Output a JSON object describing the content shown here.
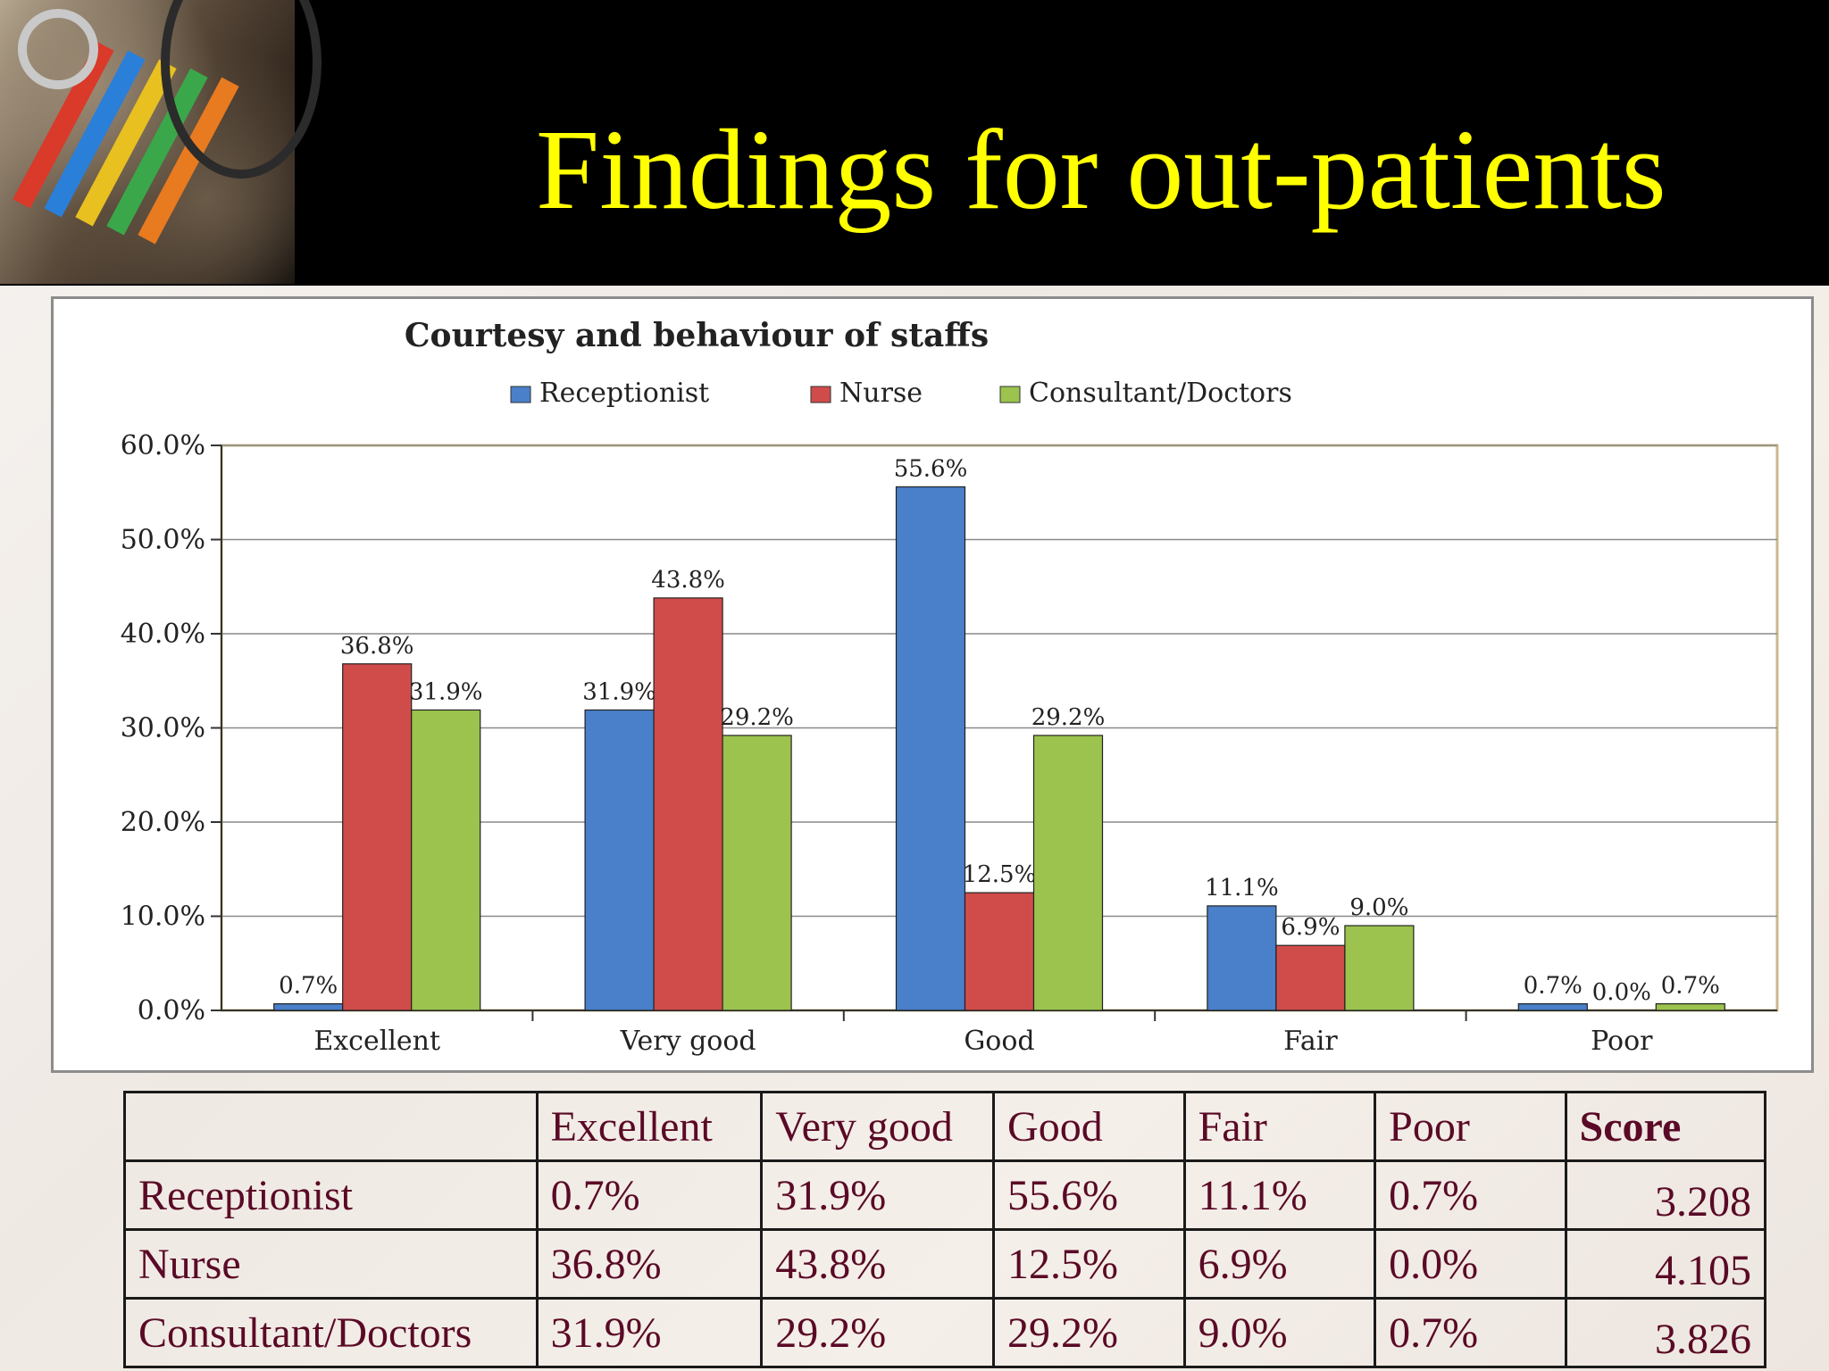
{
  "slide": {
    "title": "Findings for out-patients"
  },
  "chart_data": {
    "type": "bar",
    "title": "Courtesy and behaviour of staffs",
    "categories": [
      "Excellent",
      "Very good",
      "Good",
      "Fair",
      "Poor"
    ],
    "series": [
      {
        "name": "Receptionist",
        "color": "#4a7fc9",
        "values": [
          0.7,
          31.9,
          55.6,
          11.1,
          0.7
        ],
        "labels": [
          "0.7%",
          "31.9%",
          "55.6%",
          "11.1%",
          "0.7%"
        ]
      },
      {
        "name": "Nurse",
        "color": "#d04c4a",
        "values": [
          36.8,
          43.8,
          12.5,
          6.9,
          0.0
        ],
        "labels": [
          "36.8%",
          "43.8%",
          "12.5%",
          "6.9%",
          "0.0%"
        ]
      },
      {
        "name": "Consultant/Doctors",
        "color": "#9bc34e",
        "values": [
          31.9,
          29.2,
          29.2,
          9.0,
          0.7
        ],
        "labels": [
          "31.9%",
          "29.2%",
          "29.2%",
          "9.0%",
          "0.7%"
        ]
      }
    ],
    "ylim": [
      0,
      60
    ],
    "yticks": [
      0,
      10,
      20,
      30,
      40,
      50,
      60
    ],
    "ytick_labels": [
      "0.0%",
      "10.0%",
      "20.0%",
      "30.0%",
      "40.0%",
      "50.0%",
      "60.0%"
    ],
    "xlabel": "",
    "ylabel": "",
    "grid": true,
    "legend_position": "top"
  },
  "table": {
    "headers": [
      "",
      "Excellent",
      "Very good",
      "Good",
      "Fair",
      "Poor",
      "Score"
    ],
    "rows": [
      {
        "label": "Receptionist",
        "cells": [
          "0.7%",
          "31.9%",
          "55.6%",
          "11.1%",
          "0.7%"
        ],
        "score": "3.208"
      },
      {
        "label": "Nurse",
        "cells": [
          "36.8%",
          "43.8%",
          "12.5%",
          "6.9%",
          "0.0%"
        ],
        "score": "4.105"
      },
      {
        "label": "Consultant/Doctors",
        "cells": [
          "31.9%",
          "29.2%",
          "29.2%",
          "9.0%",
          "0.7%"
        ],
        "score": "3.826"
      }
    ]
  }
}
